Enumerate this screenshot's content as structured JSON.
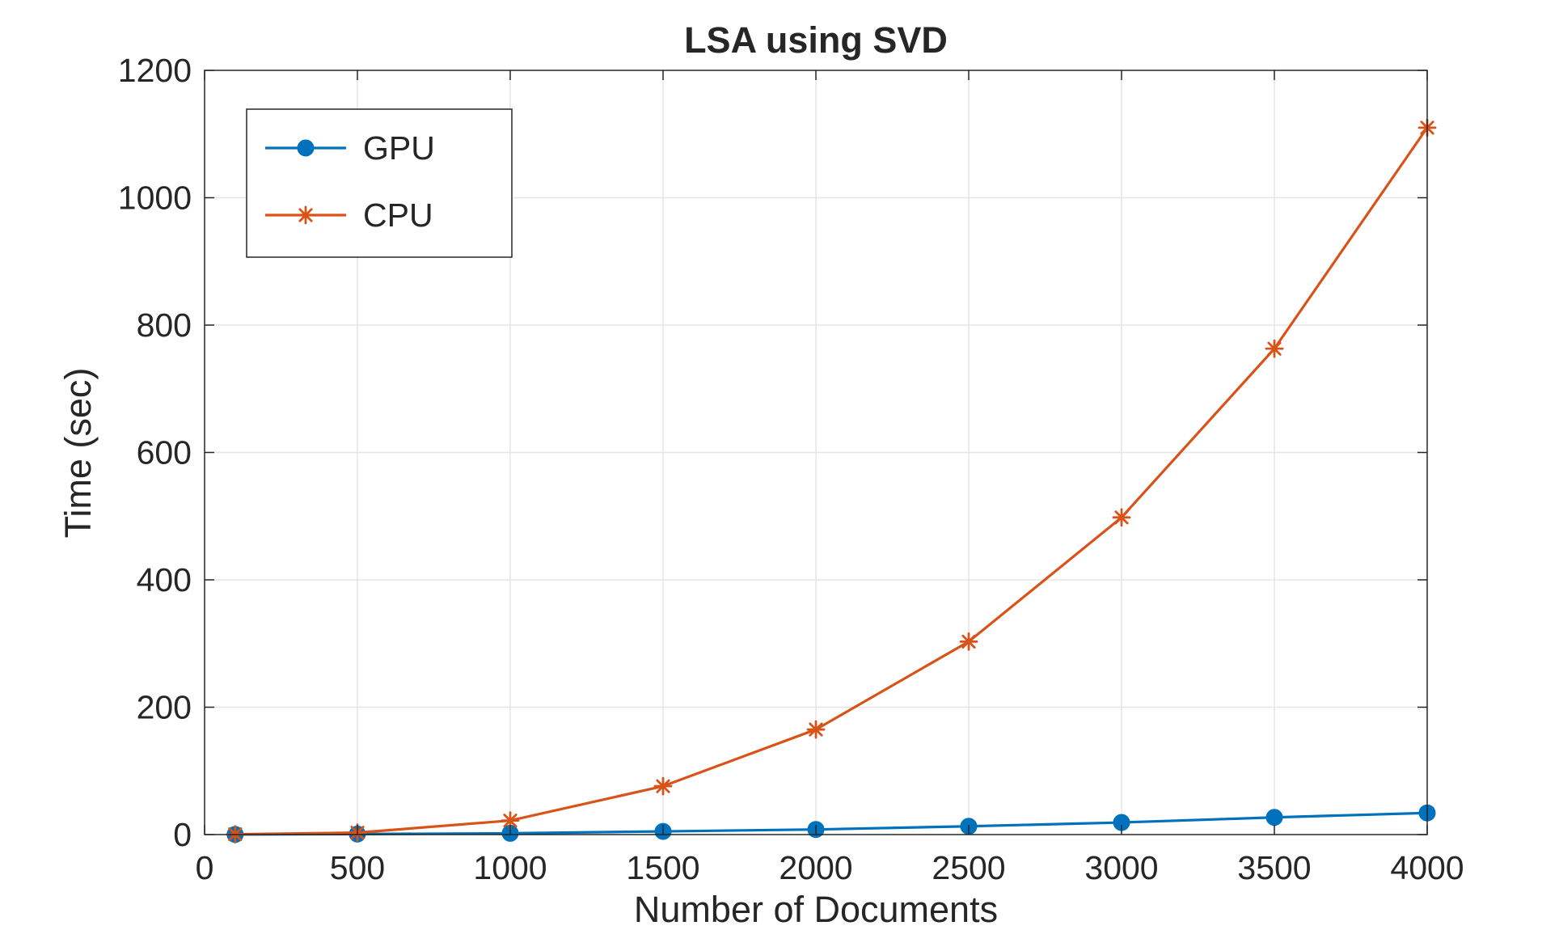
{
  "chart_data": {
    "type": "line",
    "title": "LSA using SVD",
    "xlabel": "Number of Documents",
    "ylabel": "Time (sec)",
    "xlim": [
      0,
      4000
    ],
    "ylim": [
      0,
      1200
    ],
    "xticks": [
      0,
      500,
      1000,
      1500,
      2000,
      2500,
      3000,
      3500,
      4000
    ],
    "yticks": [
      0,
      200,
      400,
      600,
      800,
      1000,
      1200
    ],
    "grid": true,
    "legend_position": "top-left",
    "x": [
      100,
      500,
      1000,
      1500,
      2000,
      2500,
      3000,
      3500,
      4000
    ],
    "series": [
      {
        "name": "GPU",
        "marker": "circle",
        "color": "#0072BD",
        "values": [
          0.2,
          0.8,
          2,
          5,
          8,
          13,
          19,
          27,
          34
        ]
      },
      {
        "name": "CPU",
        "marker": "asterisk",
        "color": "#D95319",
        "values": [
          0.5,
          3,
          22,
          76,
          165,
          303,
          498,
          763,
          1110
        ]
      }
    ]
  }
}
